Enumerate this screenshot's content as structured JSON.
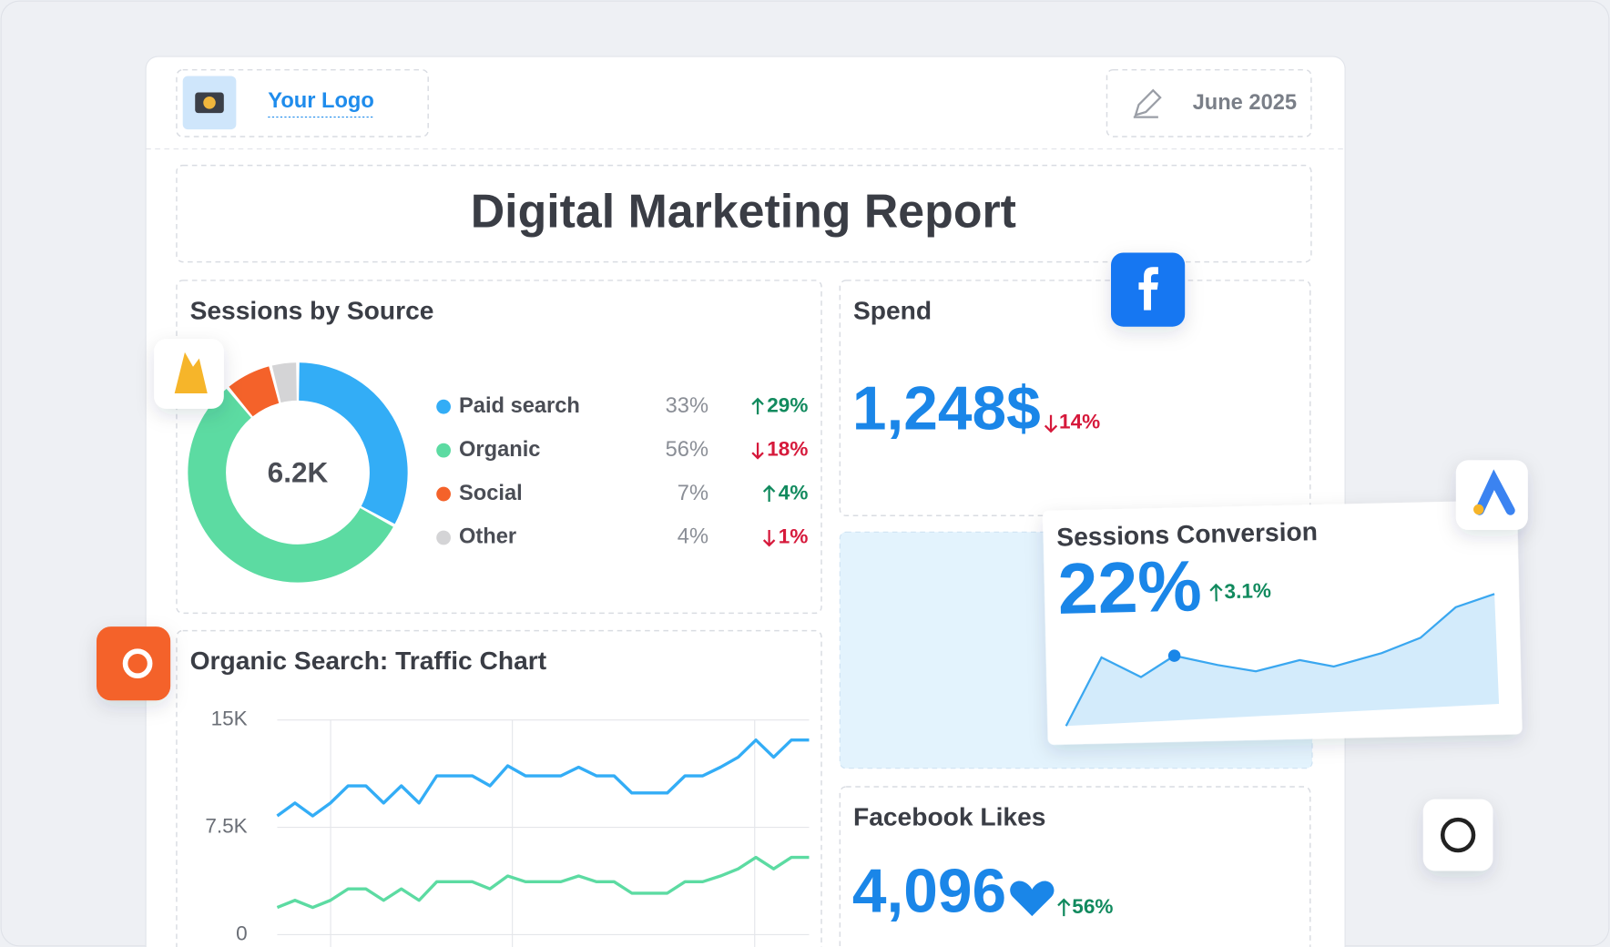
{
  "header": {
    "logo_text": "Your Logo",
    "date": "June 2025"
  },
  "title": "Digital Marketing Report",
  "sessions_by_source": {
    "title": "Sessions by Source",
    "type": "pie",
    "total_label": "6.2K",
    "categories": [
      "Paid search",
      "Organic",
      "Social",
      "Other"
    ],
    "values": [
      33,
      56,
      7,
      4
    ],
    "value_labels": [
      "33%",
      "56%",
      "7%",
      "4%"
    ],
    "colors": [
      "#33adf6",
      "#5cdba2",
      "#f4622a",
      "#d4d4d6"
    ],
    "changes": [
      "29%",
      "18%",
      "4%",
      "1%"
    ],
    "change_directions": [
      "up",
      "down",
      "up",
      "down"
    ]
  },
  "spend": {
    "title": "Spend",
    "value": "1,248$",
    "change": "14%",
    "change_direction": "down"
  },
  "sessions_conversion": {
    "title": "Sessions Conversion",
    "value": "22%",
    "change": "3.1%",
    "change_direction": "up"
  },
  "facebook_likes": {
    "title": "Facebook Likes",
    "value": "4,096",
    "change": "56%",
    "change_direction": "up"
  },
  "traffic_chart": {
    "type": "line",
    "title": "Organic Search: Traffic Chart",
    "ylim": [
      0,
      15000
    ],
    "yticks": [
      0,
      {
        "value": 7500,
        "label": "7.5K"
      },
      {
        "value": 15000,
        "label": "15K"
      }
    ],
    "grid": true,
    "series": [
      {
        "color": "#33adf6",
        "values": [
          8300,
          9200,
          8300,
          9200,
          10400,
          10400,
          9200,
          10400,
          9200,
          11100,
          11100,
          11100,
          10400,
          11800,
          11100,
          11100,
          11100,
          11700,
          11100,
          11100,
          9900,
          9900,
          9900,
          11100,
          11100,
          11700,
          12400,
          13600,
          12400,
          13600,
          13600
        ]
      },
      {
        "color": "#5cdba2",
        "values": [
          1900,
          2400,
          1900,
          2400,
          3200,
          3200,
          2400,
          3200,
          2400,
          3700,
          3700,
          3700,
          3200,
          4100,
          3700,
          3700,
          3700,
          4100,
          3700,
          3700,
          2900,
          2900,
          2900,
          3700,
          3700,
          4100,
          4600,
          5400,
          4600,
          5400,
          5400
        ]
      }
    ]
  }
}
